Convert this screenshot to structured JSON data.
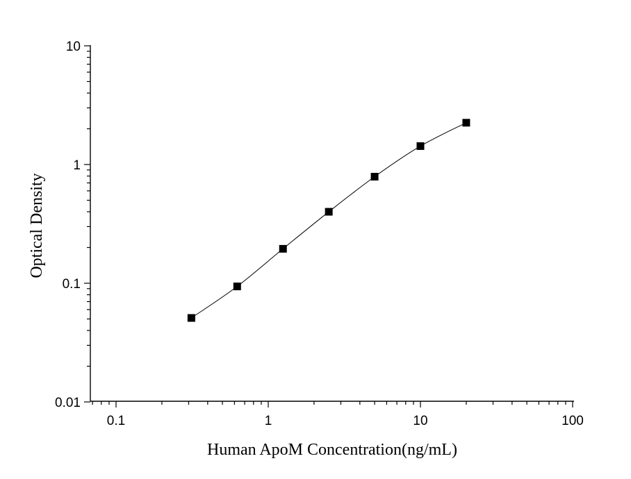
{
  "chart_data": {
    "type": "scatter",
    "xscale": "log",
    "yscale": "log",
    "xlim": [
      0.07,
      100
    ],
    "ylim": [
      0.01,
      10
    ],
    "xlabel": "Human ApoM Concentration(ng/mL)",
    "ylabel": "Optical Density",
    "x_ticks": [
      0.1,
      1,
      10,
      100
    ],
    "x_tick_labels": [
      "0.1",
      "1",
      "10",
      "100"
    ],
    "y_ticks": [
      0.01,
      0.1,
      1,
      10
    ],
    "y_tick_labels": [
      "0.01",
      "0.1",
      "1",
      "10"
    ],
    "grid": false,
    "series": [
      {
        "marker": "square",
        "color": "#000000",
        "x": [
          0.3125,
          0.625,
          1.25,
          2.5,
          5,
          10,
          20
        ],
        "y": [
          0.051,
          0.094,
          0.195,
          0.4,
          0.79,
          1.43,
          2.25
        ],
        "fit_line": true
      }
    ]
  }
}
